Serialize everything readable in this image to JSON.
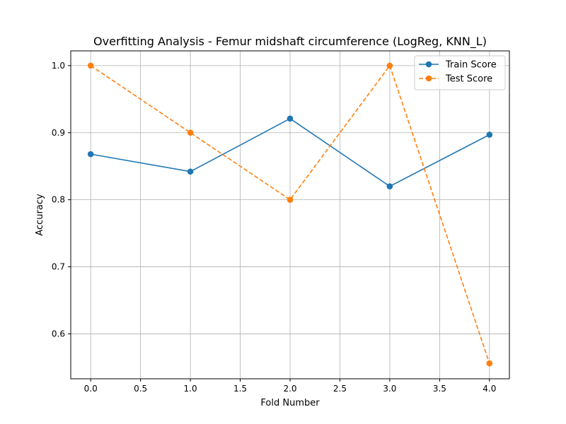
{
  "chart_data": {
    "type": "line",
    "title": "Overfitting Analysis - Femur midshaft circumference (LogReg, KNN_L)",
    "xlabel": "Fold Number",
    "ylabel": "Accuracy",
    "x": [
      0,
      1,
      2,
      3,
      4
    ],
    "xlim": [
      -0.2,
      4.2
    ],
    "ylim": [
      0.533,
      1.022
    ],
    "x_ticks": [
      "0.0",
      "0.5",
      "1.0",
      "1.5",
      "2.0",
      "2.5",
      "3.0",
      "3.5",
      "4.0"
    ],
    "y_ticks": [
      "0.6",
      "0.7",
      "0.8",
      "0.9",
      "1.0"
    ],
    "grid": true,
    "legend_position": "top-right",
    "series": [
      {
        "name": "Train Score",
        "values": [
          0.868,
          0.842,
          0.921,
          0.82,
          0.897
        ],
        "color": "#1f77b4",
        "line_style": "solid",
        "marker": "circle"
      },
      {
        "name": "Test Score",
        "values": [
          1.0,
          0.9,
          0.8,
          1.0,
          0.556
        ],
        "color": "#ff7f0e",
        "line_style": "dashed",
        "marker": "circle"
      }
    ]
  }
}
